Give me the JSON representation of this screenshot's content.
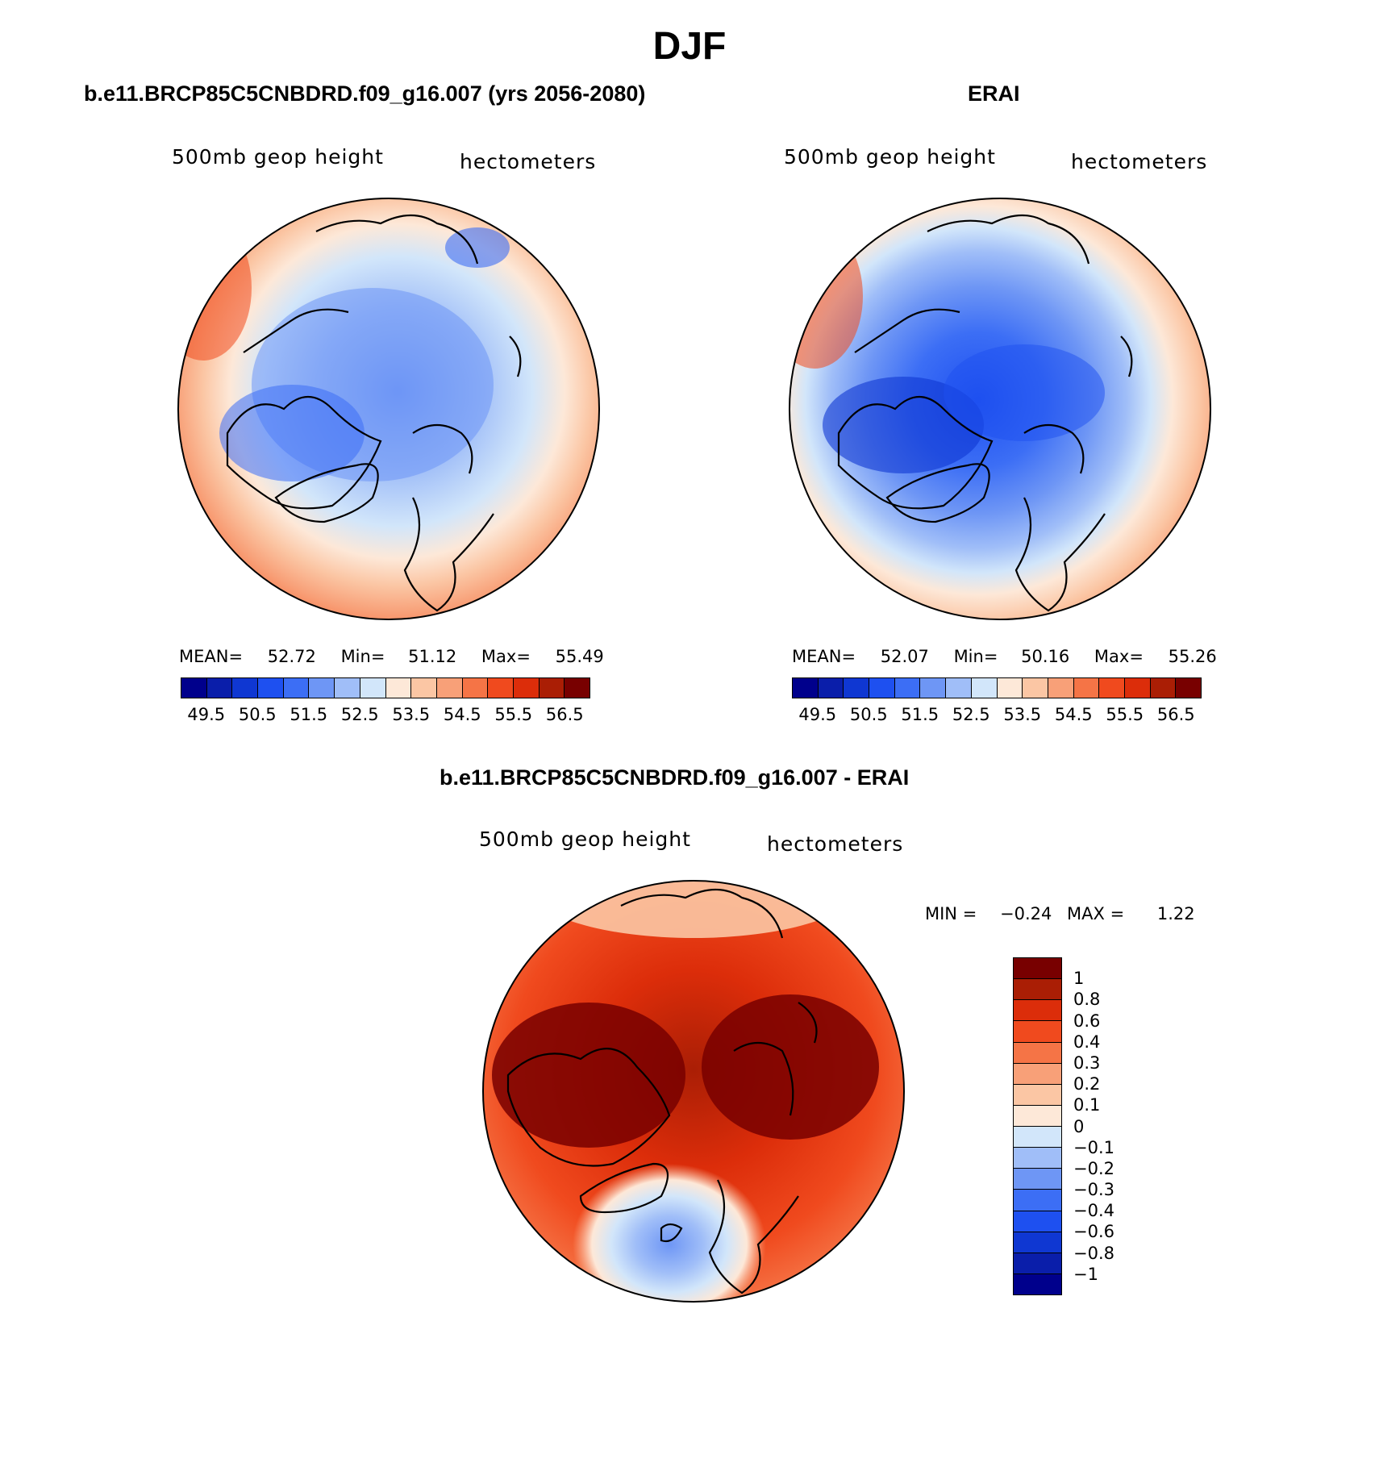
{
  "page": {
    "title": "DJF"
  },
  "panels": {
    "model": {
      "title": "b.e11.BRCP85C5CNBDRD.f09_g16.007 (yrs 2056-2080)",
      "variable": "500mb geop height",
      "units": "hectometers",
      "mean_label": "MEAN=",
      "mean": "52.72",
      "min_label": "Min=",
      "min": "51.12",
      "max_label": "Max=",
      "max": "55.49"
    },
    "obs": {
      "title": "ERAI",
      "variable": "500mb geop height",
      "units": "hectometers",
      "mean_label": "MEAN=",
      "mean": "52.07",
      "min_label": "Min=",
      "min": "50.16",
      "max_label": "Max=",
      "max": "55.26"
    },
    "diff": {
      "title": "b.e11.BRCP85C5CNBDRD.f09_g16.007 - ERAI",
      "variable": "500mb geop height",
      "units": "hectometers",
      "min_label": "MIN =",
      "min": "−0.24",
      "max_label": "MAX =",
      "max": "1.22"
    }
  },
  "colorbars": {
    "abs": {
      "colors": [
        "#00008c",
        "#0a1eaa",
        "#0f37d2",
        "#1e50f0",
        "#3c6ef5",
        "#6e96f5",
        "#a0bef8",
        "#d2e6fa",
        "#fde8d8",
        "#fbc6a4",
        "#f8a078",
        "#f57446",
        "#f04a1e",
        "#dc2d0a",
        "#aa1e05",
        "#780000"
      ],
      "ticks": [
        "49.5",
        "50.5",
        "51.5",
        "52.5",
        "53.5",
        "54.5",
        "55.5",
        "56.5"
      ]
    },
    "diff": {
      "colors": [
        "#780000",
        "#aa1e05",
        "#dc2d0a",
        "#f04a1e",
        "#f57446",
        "#f8a078",
        "#fbc6a4",
        "#fde8d8",
        "#d2e6fa",
        "#a0bef8",
        "#6e96f5",
        "#3c6ef5",
        "#1e50f0",
        "#0f37d2",
        "#0a1eaa",
        "#00008c"
      ],
      "ticks": [
        "1",
        "0.8",
        "0.6",
        "0.4",
        "0.3",
        "0.2",
        "0.1",
        "0",
        "−0.1",
        "−0.2",
        "−0.3",
        "−0.4",
        "−0.6",
        "−0.8",
        "−1"
      ]
    }
  },
  "chart_data": [
    {
      "type": "heatmap",
      "title": "b.e11.BRCP85C5CNBDRD.f09_g16.007 (yrs 2056-2080)",
      "projection": "north polar stereographic",
      "field": "500mb geop height (hectometers)",
      "mean": 52.72,
      "min": 51.12,
      "max": 55.49,
      "levels": [
        49.5,
        50,
        50.5,
        51,
        51.5,
        52,
        52.5,
        53,
        53.5,
        54,
        54.5,
        55,
        55.5,
        56,
        56.5
      ],
      "legend_ticks": [
        49.5,
        50.5,
        51.5,
        52.5,
        53.5,
        54.5,
        55.5,
        56.5
      ]
    },
    {
      "type": "heatmap",
      "title": "ERAI",
      "projection": "north polar stereographic",
      "field": "500mb geop height (hectometers)",
      "mean": 52.07,
      "min": 50.16,
      "max": 55.26,
      "levels": [
        49.5,
        50,
        50.5,
        51,
        51.5,
        52,
        52.5,
        53,
        53.5,
        54,
        54.5,
        55,
        55.5,
        56,
        56.5
      ],
      "legend_ticks": [
        49.5,
        50.5,
        51.5,
        52.5,
        53.5,
        54.5,
        55.5,
        56.5
      ]
    },
    {
      "type": "heatmap",
      "title": "b.e11.BRCP85C5CNBDRD.f09_g16.007 - ERAI",
      "projection": "north polar stereographic",
      "field": "500mb geop height difference (hectometers)",
      "min": -0.24,
      "max": 1.22,
      "levels": [
        1,
        0.8,
        0.6,
        0.4,
        0.3,
        0.2,
        0.1,
        0,
        -0.1,
        -0.2,
        -0.3,
        -0.4,
        -0.6,
        -0.8,
        -1
      ]
    }
  ]
}
